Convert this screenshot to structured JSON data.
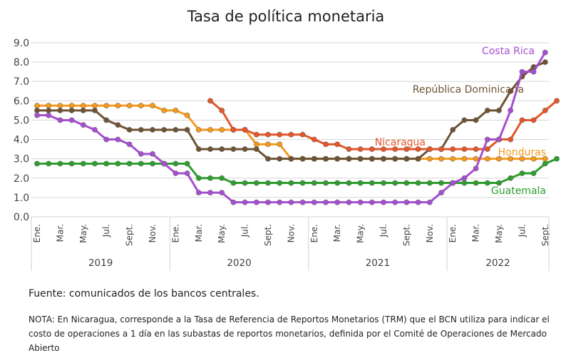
{
  "chart_data": {
    "type": "line",
    "title": "Tasa de política monetaria",
    "x_month_labels": [
      "Ene.",
      "Mar.",
      "May.",
      "Jul.",
      "Sept.",
      "Nov.",
      "Ene.",
      "Mar.",
      "May.",
      "Jul.",
      "Sept.",
      "Nov.",
      "Ene.",
      "Mar.",
      "May.",
      "Jul.",
      "Sept.",
      "Nov.",
      "Ene.",
      "Mar.",
      "May.",
      "Jul.",
      "Sept."
    ],
    "x_year_labels": [
      "2019",
      "2020",
      "2021",
      "2022"
    ],
    "ylim": [
      0,
      9
    ],
    "yticks": [
      "0.0",
      "1.0",
      "2.0",
      "3.0",
      "4.0",
      "5.0",
      "6.0",
      "7.0",
      "8.0",
      "9.0"
    ],
    "grid": "horizontal",
    "months_per_year": 12,
    "series": [
      {
        "name": "Costa Rica",
        "color": "#a64fd1",
        "start_index": 0,
        "values": [
          5.25,
          5.25,
          5.0,
          5.0,
          4.75,
          4.5,
          4.0,
          4.0,
          3.75,
          3.25,
          3.25,
          2.75,
          2.25,
          2.25,
          1.25,
          1.25,
          1.25,
          0.75,
          0.75,
          0.75,
          0.75,
          0.75,
          0.75,
          0.75,
          0.75,
          0.75,
          0.75,
          0.75,
          0.75,
          0.75,
          0.75,
          0.75,
          0.75,
          0.75,
          0.75,
          1.25,
          1.75,
          2.0,
          2.5,
          4.0,
          4.0,
          5.5,
          7.5,
          7.5,
          8.5
        ]
      },
      {
        "name": "República Dominicana",
        "color": "#6e5334",
        "start_index": 0,
        "values": [
          5.5,
          5.5,
          5.5,
          5.5,
          5.5,
          5.5,
          5.0,
          4.75,
          4.5,
          4.5,
          4.5,
          4.5,
          4.5,
          4.5,
          3.5,
          3.5,
          3.5,
          3.5,
          3.5,
          3.5,
          3.0,
          3.0,
          3.0,
          3.0,
          3.0,
          3.0,
          3.0,
          3.0,
          3.0,
          3.0,
          3.0,
          3.0,
          3.0,
          3.0,
          3.5,
          3.5,
          4.5,
          5.0,
          5.0,
          5.5,
          5.5,
          6.5,
          7.25,
          7.75,
          8.0
        ]
      },
      {
        "name": "Nicaragua",
        "color": "#e5562a",
        "start_index": 15,
        "values": [
          6.0,
          5.5,
          4.5,
          4.5,
          4.25,
          4.25,
          4.25,
          4.25,
          4.25,
          4.0,
          3.75,
          3.75,
          3.5,
          3.5,
          3.5,
          3.5,
          3.5,
          3.5,
          3.5,
          3.5,
          3.5,
          3.5,
          3.5,
          3.5,
          3.5,
          4.0,
          4.0,
          5.0,
          5.0,
          5.5,
          6.0
        ]
      },
      {
        "name": "Honduras",
        "color": "#f59a1e",
        "start_index": 0,
        "values": [
          5.75,
          5.75,
          5.75,
          5.75,
          5.75,
          5.75,
          5.75,
          5.75,
          5.75,
          5.75,
          5.75,
          5.5,
          5.5,
          5.25,
          4.5,
          4.5,
          4.5,
          4.5,
          4.5,
          3.75,
          3.75,
          3.75,
          3.0,
          3.0,
          3.0,
          3.0,
          3.0,
          3.0,
          3.0,
          3.0,
          3.0,
          3.0,
          3.0,
          3.0,
          3.0,
          3.0,
          3.0,
          3.0,
          3.0,
          3.0,
          3.0,
          3.0,
          3.0,
          3.0,
          3.0
        ]
      },
      {
        "name": "Guatemala",
        "color": "#2e9e2e",
        "start_index": 0,
        "values": [
          2.75,
          2.75,
          2.75,
          2.75,
          2.75,
          2.75,
          2.75,
          2.75,
          2.75,
          2.75,
          2.75,
          2.75,
          2.75,
          2.75,
          2.0,
          2.0,
          2.0,
          1.75,
          1.75,
          1.75,
          1.75,
          1.75,
          1.75,
          1.75,
          1.75,
          1.75,
          1.75,
          1.75,
          1.75,
          1.75,
          1.75,
          1.75,
          1.75,
          1.75,
          1.75,
          1.75,
          1.75,
          1.75,
          1.75,
          1.75,
          1.75,
          2.0,
          2.25,
          2.25,
          2.75,
          3.0
        ]
      }
    ]
  },
  "footer": {
    "source": "Fuente: comunicados de los bancos centrales.",
    "note": "NOTA: En Nicaragua, corresponde a la Tasa de Referencia de Reportos Monetarios (TRM) que el BCN utiliza para indicar el costo de operaciones a 1 día en las subastas de reportos monetarios, definida por el Comité de Operaciones de Mercado Abierto"
  }
}
